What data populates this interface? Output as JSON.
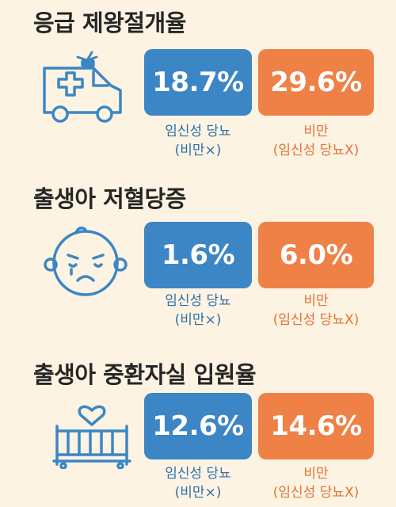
{
  "colors": {
    "background": "#fcf3e3",
    "blue": "#3d86c5",
    "orange": "#ef8147"
  },
  "sections": [
    {
      "title": "응급 제왕절개율",
      "icon": "ambulance-icon",
      "blue": {
        "value": "18.7%",
        "label_line1": "임신성 당뇨",
        "label_line2": "(비만×)"
      },
      "orange": {
        "value": "29.6%",
        "label_line1": "비만",
        "label_line2": "(임신성 당뇨X)"
      }
    },
    {
      "title": "출생아 저혈당증",
      "icon": "crying-baby-icon",
      "blue": {
        "value": "1.6%",
        "label_line1": "임신성 당뇨",
        "label_line2": "(비만×)"
      },
      "orange": {
        "value": "6.0%",
        "label_line1": "비만",
        "label_line2": "(임신성 당뇨X)"
      }
    },
    {
      "title": "출생아 중환자실 입원율",
      "icon": "baby-crib-heart-icon",
      "blue": {
        "value": "12.6%",
        "label_line1": "임신성 당뇨",
        "label_line2": "(비만×)"
      },
      "orange": {
        "value": "14.6%",
        "label_line1": "비만",
        "label_line2": "(임신성 당뇨X)"
      }
    }
  ]
}
